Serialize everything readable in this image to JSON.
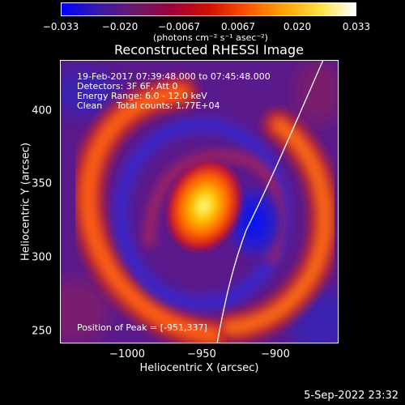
{
  "colorbar": {
    "colors": [
      "#0000ff",
      "#3a1aa8",
      "#6a1a6a",
      "#a0003a",
      "#d01000",
      "#ff5000",
      "#ffa000",
      "#ffe040",
      "#ffffff"
    ],
    "tick_labels": [
      "−0.033",
      "−0.020",
      "−0.0067",
      "0.0067",
      "0.020",
      "0.033"
    ],
    "unit_label": "(photons cm⁻² s⁻¹ asec⁻²)"
  },
  "title": "Reconstructed RHESSI Image",
  "info": {
    "time_range": "19-Feb-2017 07:39:48.000 to 07:45:48.000",
    "detectors": "Detectors: 3F 6F, Att 0",
    "energy": "Energy Range: 6.0 - 12.0 keV",
    "clean": "Clean     Total counts: 1.77E+04"
  },
  "peak": "Position of Peak = [-951,337]",
  "axes": {
    "xlabel": "Heliocentric X (arcsec)",
    "ylabel": "Heliocentric Y (arcsec)",
    "xticks": [
      "−1000",
      "−950",
      "−900"
    ],
    "yticks": [
      "400",
      "350",
      "300",
      "250"
    ]
  },
  "date_stamp": "5-Sep-2022 23:32"
}
